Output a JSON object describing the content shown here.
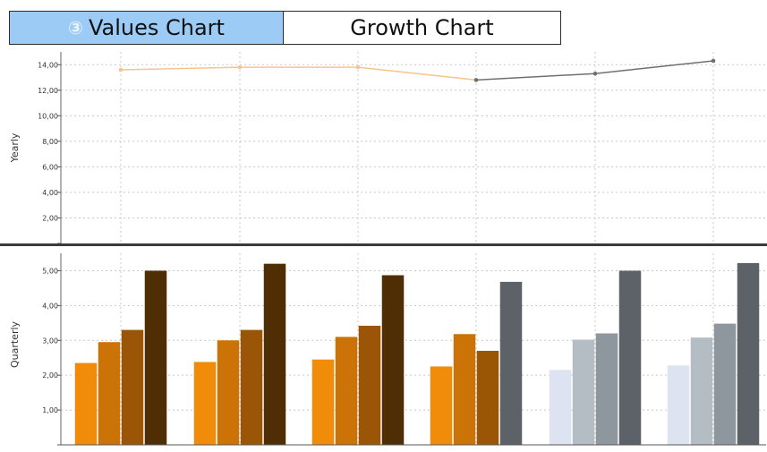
{
  "tabs": [
    {
      "label": "Values Chart",
      "active": true,
      "icon": "chart-icon"
    },
    {
      "label": "Growth Chart",
      "active": false
    }
  ],
  "colors": {
    "orange_series": "#f6c48f",
    "gray_series": "#707070",
    "grid": "#c8c8c8",
    "divider": "#3a3a3a"
  },
  "chart_data": [
    {
      "type": "line",
      "ylabel": "Yearly",
      "ylim": [
        0,
        15
      ],
      "yticks": [
        "",
        "2,00",
        "4,00",
        "6,00",
        "8,00",
        "10,00",
        "12,00",
        "14,00"
      ],
      "grid": true,
      "x": [
        1,
        2,
        3,
        4,
        5,
        6
      ],
      "series": [
        {
          "values": [
            13.6,
            13.8,
            13.8,
            12.8,
            null,
            null
          ],
          "color": "#f6c48f"
        },
        {
          "values": [
            null,
            null,
            null,
            12.8,
            13.3,
            14.3
          ],
          "color": "#707070"
        }
      ]
    },
    {
      "type": "bar",
      "ylabel": "Quarterly",
      "ylim": [
        0,
        5.5
      ],
      "yticks": [
        "",
        "1,00",
        "2,00",
        "3,00",
        "4,00",
        "5,00"
      ],
      "grid": true,
      "groups": [
        {
          "values": [
            2.35,
            2.95,
            3.3,
            5.0
          ],
          "colors": [
            "#f08c0a",
            "#cc7308",
            "#9a5606",
            "#4f2e05"
          ]
        },
        {
          "values": [
            2.38,
            3.0,
            3.3,
            5.2
          ],
          "colors": [
            "#f08c0a",
            "#cc7308",
            "#9a5606",
            "#4f2e05"
          ]
        },
        {
          "values": [
            2.45,
            3.1,
            3.42,
            4.87
          ],
          "colors": [
            "#f08c0a",
            "#cc7308",
            "#9a5606",
            "#4f2e05"
          ]
        },
        {
          "values": [
            2.25,
            3.18,
            2.7,
            4.68
          ],
          "colors": [
            "#f08c0a",
            "#cc7308",
            "#9a5606",
            "#5c6268"
          ]
        },
        {
          "values": [
            2.15,
            3.02,
            3.2,
            5.0
          ],
          "colors": [
            "#dde3f0",
            "#b4bcc4",
            "#8e969e",
            "#5c6268"
          ]
        },
        {
          "values": [
            2.28,
            3.08,
            3.48,
            5.22
          ],
          "colors": [
            "#dde3f0",
            "#b4bcc4",
            "#8e969e",
            "#5c6268"
          ]
        }
      ]
    }
  ]
}
